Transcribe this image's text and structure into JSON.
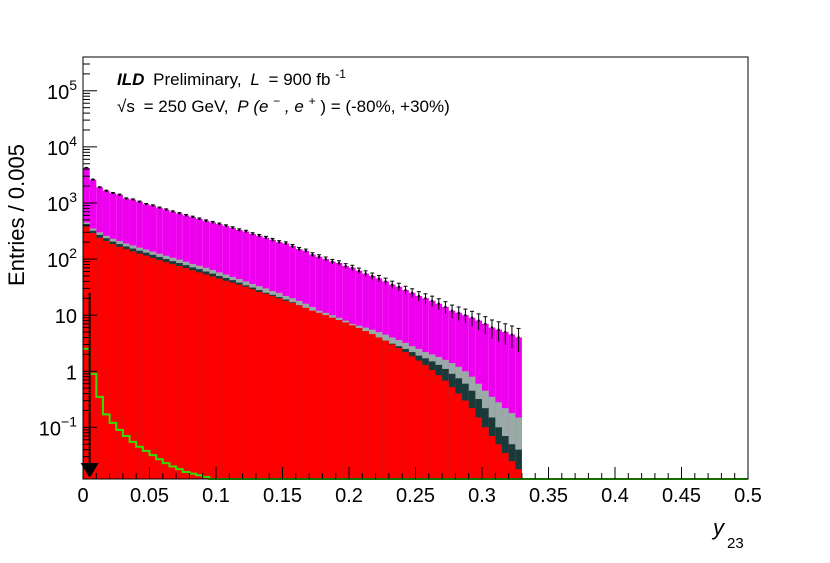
{
  "chart_data": {
    "type": "histogram",
    "title": "",
    "ylabel": "Entries / 0.005",
    "xlabel": "y",
    "xlabel_sub": "23",
    "xlim": [
      0,
      0.5
    ],
    "ylim_log": [
      0.012,
      400000
    ],
    "log_y": true,
    "grid": false,
    "bin_width": 0.005,
    "x_ticks": [
      "0",
      "0.05",
      "0.1",
      "0.15",
      "0.2",
      "0.25",
      "0.3",
      "0.35",
      "0.4",
      "0.45",
      "0.5"
    ],
    "y_ticks": [
      {
        "value": 100000,
        "base": "10",
        "exp": "5"
      },
      {
        "value": 10000,
        "base": "10",
        "exp": "4"
      },
      {
        "value": 1000,
        "base": "10",
        "exp": "3"
      },
      {
        "value": 100,
        "base": "10",
        "exp": "2"
      },
      {
        "value": 10,
        "base": "10",
        "exp": ""
      },
      {
        "value": 1,
        "base": "1",
        "exp": ""
      },
      {
        "value": 0.1,
        "base": "10",
        "exp": "−1"
      }
    ],
    "annotation": {
      "line1_bold": "ILD",
      "line1_rest": "Preliminary,",
      "line1_L": "L",
      "line1_eq": "= 900 fb",
      "line1_sup": "-1",
      "line2_sqrt": "√s",
      "line2_eq": "= 250 GeV,",
      "line2_P": "P",
      "line2_paren": "(e",
      "line2_sup1": "−",
      "line2_comma": ", e",
      "line2_sup2": "+",
      "line2_rest": ") = (-80%, +30%)"
    },
    "cut_marker_x": 0.005,
    "cut_marker_ytop": 2.5,
    "colors": {
      "top": "#ee00ee",
      "band_gray": "#9aaaa6",
      "band_dark": "#1a3a3a",
      "band_teal": "#6ecdb0",
      "red": "#ff0000",
      "green_line": "#33dd00",
      "blue": "#0000dd",
      "tan": "#d8c8a0"
    },
    "series": [
      {
        "name": "",
        "color": "#ee00ee",
        "values": [
          4200,
          2600,
          1900,
          1650,
          1500,
          1400,
          1200,
          1150,
          1050,
          950,
          900,
          820,
          760,
          700,
          650,
          600,
          560,
          520,
          480,
          450,
          420,
          390,
          360,
          330,
          310,
          280,
          260,
          240,
          220,
          200,
          190,
          170,
          150,
          140,
          120,
          110,
          100,
          90,
          85,
          75,
          70,
          62,
          55,
          50,
          45,
          40,
          35,
          32,
          28,
          25,
          22,
          20,
          18,
          16,
          14,
          12,
          11,
          10,
          9,
          8,
          7,
          6,
          5.5,
          5,
          4.5,
          4,
          0,
          0,
          0,
          0
        ]
      },
      {
        "name": "",
        "color": "#9aaaa6",
        "values": [
          450,
          350,
          300,
          260,
          230,
          210,
          190,
          175,
          160,
          148,
          136,
          125,
          115,
          106,
          98,
          90,
          82,
          76,
          70,
          64,
          58,
          53,
          48,
          44,
          40,
          36,
          33,
          30,
          27,
          25,
          22,
          20,
          18,
          16,
          14,
          12,
          11,
          10,
          9,
          8,
          7,
          6.5,
          6,
          5.5,
          5,
          4.5,
          4,
          3.6,
          3.2,
          2.8,
          2.5,
          2.2,
          2,
          1.8,
          1.6,
          1.4,
          1.2,
          1,
          0.8,
          0.6,
          0.45,
          0.35,
          0.28,
          0.22,
          0.18,
          0.15,
          0,
          0,
          0,
          0
        ]
      },
      {
        "name": "",
        "color": "#1a3a3a",
        "values": [
          420,
          320,
          270,
          235,
          205,
          185,
          168,
          154,
          141,
          130,
          119,
          109,
          100,
          92,
          85,
          78,
          71,
          66,
          60,
          55,
          50,
          46,
          42,
          38,
          34,
          31,
          28,
          25,
          23,
          21,
          19,
          17,
          15,
          13,
          11.5,
          10,
          9,
          8.2,
          7.4,
          6.6,
          5.9,
          5.3,
          4.8,
          4.3,
          3.9,
          3.5,
          3.1,
          2.8,
          2.5,
          2.2,
          1.9,
          1.7,
          1.5,
          1.3,
          1.1,
          0.9,
          0.75,
          0.6,
          0.45,
          0.32,
          0.22,
          0.15,
          0.1,
          0.07,
          0.05,
          0.04,
          0,
          0,
          0,
          0
        ]
      },
      {
        "name": "",
        "color": "#ff0000",
        "values": [
          380,
          290,
          240,
          210,
          185,
          165,
          150,
          137,
          125,
          115,
          105,
          96,
          88,
          81,
          75,
          69,
          63,
          58,
          53,
          49,
          45,
          41,
          38,
          35,
          32,
          29,
          26,
          24,
          22,
          20,
          18,
          16.5,
          15,
          13.5,
          12,
          11,
          10,
          9,
          8.2,
          7.4,
          6.6,
          5.9,
          5.2,
          4.6,
          4,
          3.5,
          3,
          2.6,
          2.2,
          1.85,
          1.55,
          1.3,
          1.05,
          0.85,
          0.68,
          0.52,
          0.4,
          0.3,
          0.22,
          0.15,
          0.1,
          0.07,
          0.05,
          0.035,
          0.025,
          0.018,
          0,
          0,
          0,
          0
        ]
      },
      {
        "name": "",
        "color": "#33dd00",
        "values": [
          2.5,
          0.9,
          0.35,
          0.17,
          0.12,
          0.09,
          0.07,
          0.055,
          0.045,
          0.038,
          0.032,
          0.027,
          0.023,
          0.02,
          0.018,
          0.016,
          0.015,
          0.014,
          0.013,
          0.012,
          0.012,
          0.012,
          0.012,
          0.012,
          0.012,
          0.012,
          0.012,
          0.012,
          0.012,
          0.012,
          0.012,
          0.012,
          0.012,
          0.012,
          0.012,
          0.012,
          0.012,
          0.012,
          0.012,
          0.012,
          0.012,
          0.012,
          0.012,
          0.012,
          0.012,
          0.012,
          0.012,
          0.012,
          0.012,
          0.012,
          0.012,
          0.012,
          0.012,
          0.012,
          0.012,
          0.012,
          0.012,
          0.012,
          0.012,
          0.012,
          0.012,
          0.012,
          0.012,
          0.012,
          0.012,
          0.012,
          0.012,
          0.012,
          0.012,
          0.012
        ]
      }
    ]
  }
}
